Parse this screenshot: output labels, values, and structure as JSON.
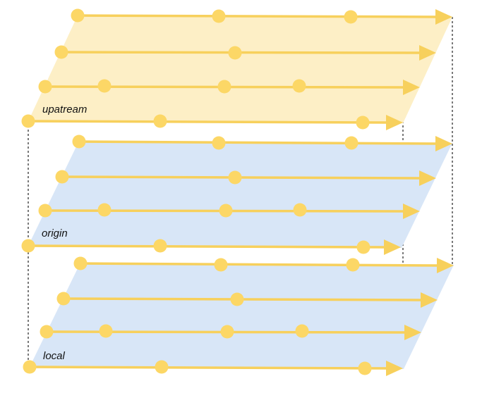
{
  "colors": {
    "upstream_fill": "#fdefc6",
    "origin_fill": "#d8e6f7",
    "local_fill": "#d8e6f7",
    "commit_line": "#f7d05c",
    "commit_dot": "#fcd766",
    "guide_line": "#222222"
  },
  "planes": [
    {
      "id": "upstream",
      "label": "upatream"
    },
    {
      "id": "origin",
      "label": "origin"
    },
    {
      "id": "local",
      "label": "local"
    }
  ]
}
